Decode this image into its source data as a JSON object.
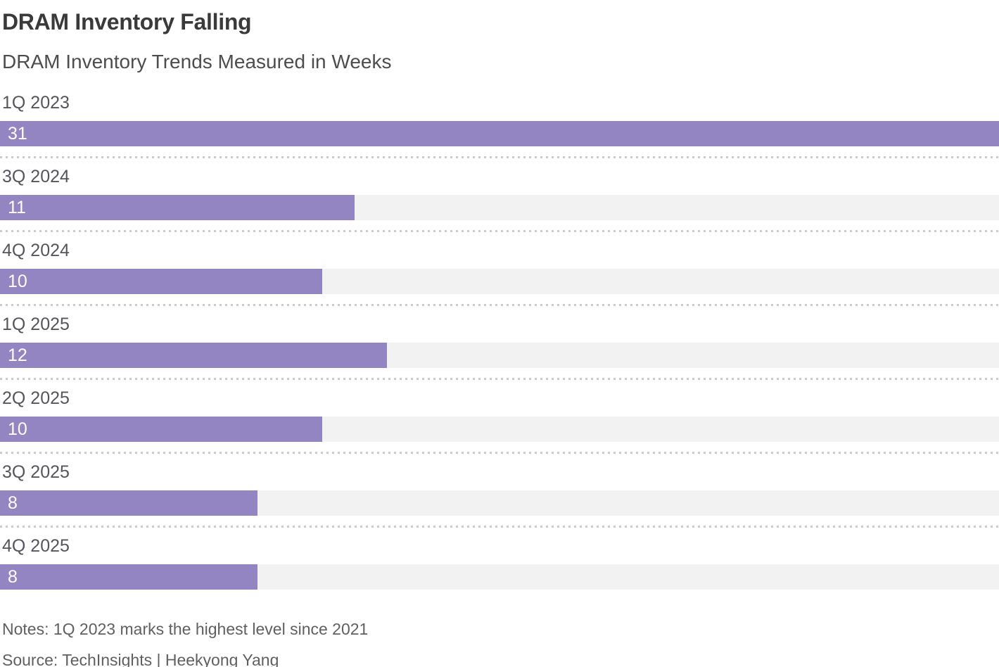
{
  "header": {
    "title": "DRAM Inventory Falling",
    "subtitle": "DRAM Inventory Trends Measured in Weeks"
  },
  "chart_data": {
    "type": "bar",
    "orientation": "horizontal",
    "title": "DRAM Inventory Falling",
    "subtitle": "DRAM Inventory Trends Measured in Weeks",
    "unit": "weeks",
    "categories": [
      "1Q 2023",
      "3Q 2024",
      "4Q 2024",
      "1Q 2025",
      "2Q 2025",
      "3Q 2025",
      "4Q 2025"
    ],
    "values": [
      31,
      11,
      10,
      12,
      10,
      8,
      8
    ],
    "xlim": [
      0,
      31
    ],
    "value_label_position": "inside-left",
    "bar_color": "#9384c2",
    "track_color": "#f2f2f2",
    "separator_style": "dotted",
    "grid": false,
    "legend": false
  },
  "footer": {
    "notes": "Notes: 1Q 2023 marks the highest level since 2021",
    "source": "Source: TechInsights | Heekyong Yang"
  }
}
